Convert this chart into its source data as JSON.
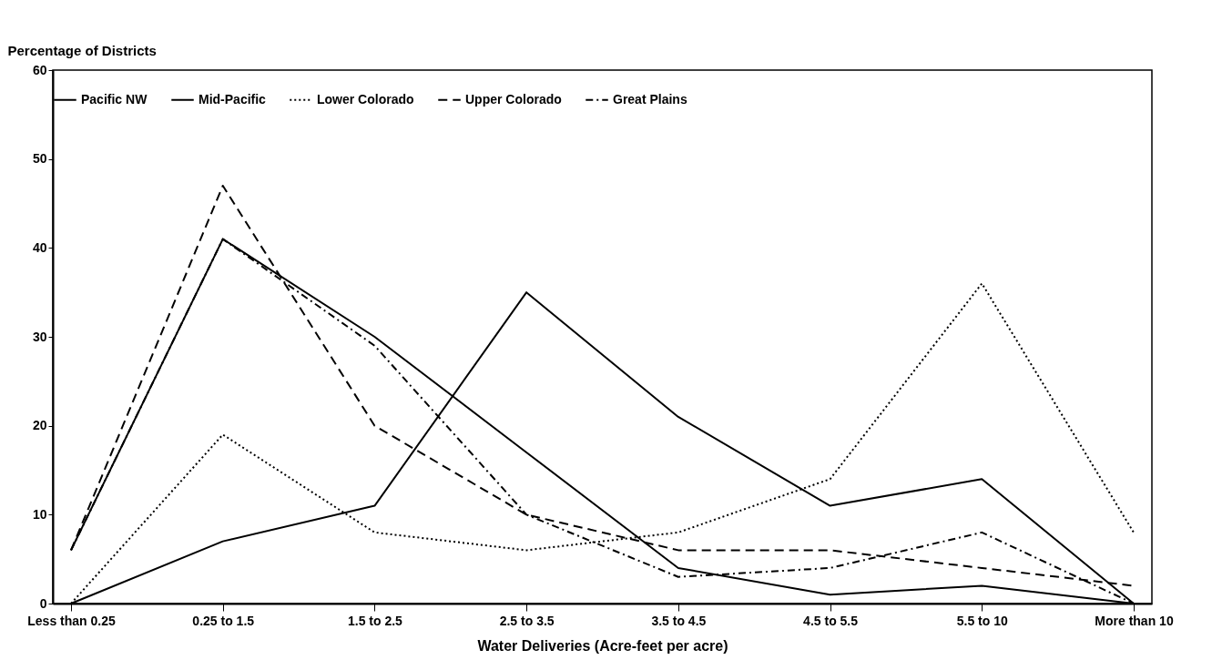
{
  "chart_data": {
    "type": "line",
    "ylabel": "Percentage of Districts",
    "xlabel": "Water Deliveries (Acre-feet per acre)",
    "categories": [
      "Less than 0.25",
      "0.25 to 1.5",
      "1.5 to 2.5",
      "2.5 to 3.5",
      "3.5 to 4.5",
      "4.5 to 5.5",
      "5.5 to 10",
      "More than 10"
    ],
    "series": [
      {
        "name": "Pacific NW",
        "color": "#000000",
        "line_style": "solid",
        "values": [
          0,
          7,
          11,
          35,
          21,
          11,
          14,
          0
        ]
      },
      {
        "name": "Mid-Pacific",
        "color": "#000000",
        "line_style": "solid",
        "values": [
          6,
          41,
          30,
          17,
          4,
          1,
          2,
          0
        ]
      },
      {
        "name": "Lower Colorado",
        "color": "#000000",
        "line_style": "dotted",
        "values": [
          0,
          19,
          8,
          6,
          8,
          14,
          36,
          8
        ]
      },
      {
        "name": "Upper Colorado",
        "color": "#000000",
        "line_style": "dashed",
        "values": [
          6,
          47,
          20,
          10,
          6,
          6,
          4,
          2
        ]
      },
      {
        "name": "Great Plains",
        "color": "#000000",
        "line_style": "dashdot",
        "values": [
          6,
          41,
          29,
          10,
          3,
          4,
          8,
          0
        ]
      }
    ],
    "ylim": [
      0,
      60
    ],
    "yticks": [
      0,
      10,
      20,
      30,
      40,
      50,
      60
    ],
    "legend": "top",
    "grid": false,
    "marker": "none"
  }
}
